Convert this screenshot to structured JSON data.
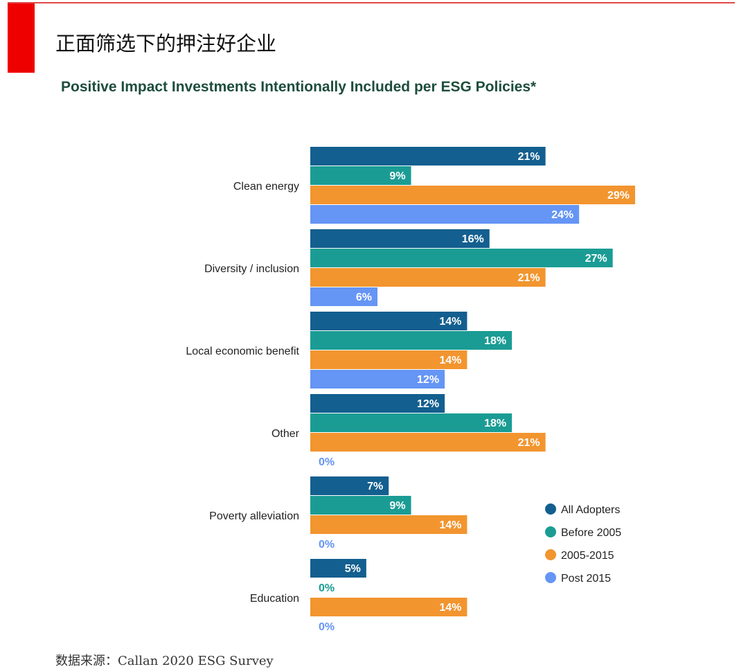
{
  "header": {
    "title": "正面筛选下的押注好企业"
  },
  "footer": {
    "source": "数据来源：Callan 2020 ESG Survey"
  },
  "chart_data": {
    "type": "bar",
    "orientation": "horizontal",
    "title": "Positive Impact Investments Intentionally Included per ESG Policies*",
    "categories": [
      "Clean energy",
      "Diversity / inclusion",
      "Local economic benefit",
      "Other",
      "Poverty alleviation",
      "Education"
    ],
    "series": [
      {
        "name": "All Adopters",
        "color": "#135f8f",
        "values": [
          21,
          16,
          14,
          12,
          7,
          5
        ]
      },
      {
        "name": "Before 2005",
        "color": "#1a9c94",
        "values": [
          9,
          27,
          18,
          18,
          9,
          0
        ]
      },
      {
        "name": "2005-2015",
        "color": "#f2952f",
        "values": [
          29,
          21,
          14,
          21,
          14,
          14
        ]
      },
      {
        "name": "Post 2015",
        "color": "#6595f5",
        "values": [
          24,
          6,
          12,
          0,
          0,
          0
        ]
      }
    ],
    "value_format": "{v}%",
    "xlim": [
      0,
      29
    ],
    "grid": false,
    "legend_position": "bottom-right"
  }
}
